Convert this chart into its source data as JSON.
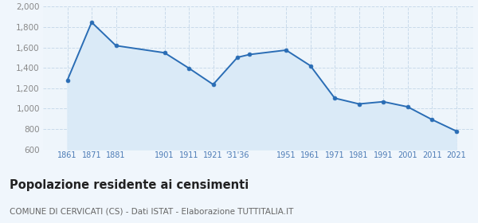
{
  "years": [
    1861,
    1871,
    1881,
    1901,
    1911,
    1921,
    1931,
    1936,
    1951,
    1961,
    1971,
    1981,
    1991,
    2001,
    2011,
    2021
  ],
  "population": [
    1278,
    1847,
    1618,
    1548,
    1397,
    1237,
    1503,
    1531,
    1574,
    1421,
    1103,
    1046,
    1068,
    1018,
    893,
    780
  ],
  "line_color": "#2a6db5",
  "fill_color": "#daeaf7",
  "marker_color": "#2a6db5",
  "background_color": "#eef5fb",
  "grid_color": "#c8daea",
  "ylim": [
    600,
    2000
  ],
  "yticks": [
    600,
    800,
    1000,
    1200,
    1400,
    1600,
    1800,
    2000
  ],
  "x_tick_positions": [
    1861,
    1871,
    1881,
    1901,
    1911,
    1921,
    1931,
    1951,
    1961,
    1971,
    1981,
    1991,
    2001,
    2011,
    2021
  ],
  "x_tick_labels": [
    "1861",
    "1871",
    "1881",
    "1901",
    "1911",
    "1921",
    "'31'36",
    "1951",
    "1961",
    "1971",
    "1981",
    "1991",
    "2001",
    "2011",
    "2021"
  ],
  "xlim": [
    1851,
    2028
  ],
  "title": "Popolazione residente ai censimenti",
  "subtitle": "COMUNE DI CERVICATI (CS) - Dati ISTAT - Elaborazione TUTTITALIA.IT",
  "title_fontsize": 10.5,
  "subtitle_fontsize": 7.5,
  "tick_label_color": "#4a7ab5",
  "ytick_label_color": "#888888"
}
